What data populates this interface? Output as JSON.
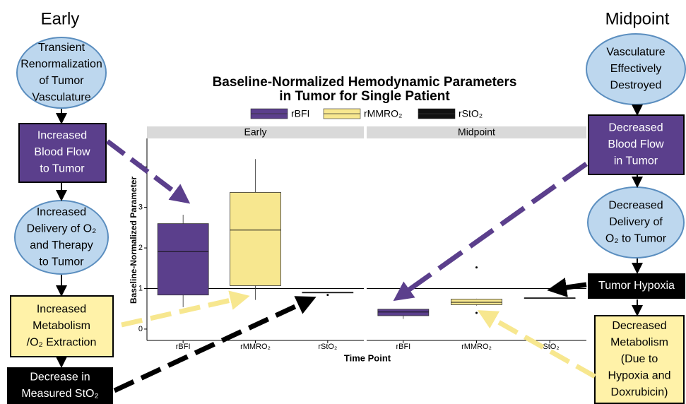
{
  "diagram": {
    "left_title": "Early",
    "right_title": "Midpoint",
    "left_nodes": [
      {
        "lines": [
          "Transient",
          "Renormalization",
          "of Tumor",
          "Vasculature"
        ]
      },
      {
        "lines": [
          "Increased",
          "Blood Flow",
          "to Tumor"
        ]
      },
      {
        "lines": [
          "Increased",
          "Delivery of O₂",
          "and Therapy",
          "to Tumor"
        ]
      },
      {
        "lines": [
          "Increased",
          "Metabolism",
          "/O₂ Extraction"
        ]
      },
      {
        "lines": [
          "Decrease in",
          "Measured StO₂"
        ]
      }
    ],
    "right_nodes": [
      {
        "lines": [
          "Vasculature",
          "Effectively",
          "Destroyed"
        ]
      },
      {
        "lines": [
          "Decreased",
          "Blood Flow",
          "in Tumor"
        ]
      },
      {
        "lines": [
          "Decreased",
          "Delivery of",
          "O₂ to Tumor"
        ]
      },
      {
        "lines": [
          "Tumor Hypoxia"
        ]
      },
      {
        "lines": [
          "Decreased",
          "Metabolism",
          "(Due to",
          "Hypoxia and",
          "Doxrubicin)"
        ]
      }
    ]
  },
  "chart_data": {
    "type": "box",
    "title": [
      "Baseline-Normalized Hemodynamic Parameters",
      "in Tumor for Single Patient"
    ],
    "x_label": "Time Point",
    "y_label": "Baseline-Normalized Parameter",
    "categories": [
      "rBFI",
      "rMMRO₂",
      "rStO₂"
    ],
    "colors": [
      "#5b3f8c",
      "#f7e78f",
      "#111111"
    ],
    "ylim": [
      -0.28,
      4.7
    ],
    "yticks": [
      0,
      1,
      2,
      3,
      4
    ],
    "hline": 1,
    "grid": false,
    "panels": [
      {
        "name": "Early",
        "boxes": [
          {
            "low": 0.54,
            "q1": 0.84,
            "median": 1.91,
            "q3": 2.6,
            "high": 2.82,
            "outliers": []
          },
          {
            "low": 0.72,
            "q1": 1.07,
            "median": 2.44,
            "q3": 3.37,
            "high": 4.19,
            "outliers": []
          },
          {
            "low": 0.89,
            "q1": 0.89,
            "median": 0.9,
            "q3": 0.91,
            "high": 0.91,
            "outliers": [
              0.84
            ]
          }
        ]
      },
      {
        "name": "Midpoint",
        "boxes": [
          {
            "low": 0.25,
            "q1": 0.33,
            "median": 0.42,
            "q3": 0.49,
            "high": 0.49,
            "outliers": [
              0.93
            ]
          },
          {
            "low": 0.58,
            "q1": 0.6,
            "median": 0.66,
            "q3": 0.74,
            "high": 0.75,
            "outliers": [
              1.52,
              0.4
            ]
          },
          {
            "low": 0.77,
            "q1": 0.77,
            "median": 0.77,
            "q3": 0.77,
            "high": 0.77,
            "outliers": []
          }
        ]
      }
    ]
  }
}
